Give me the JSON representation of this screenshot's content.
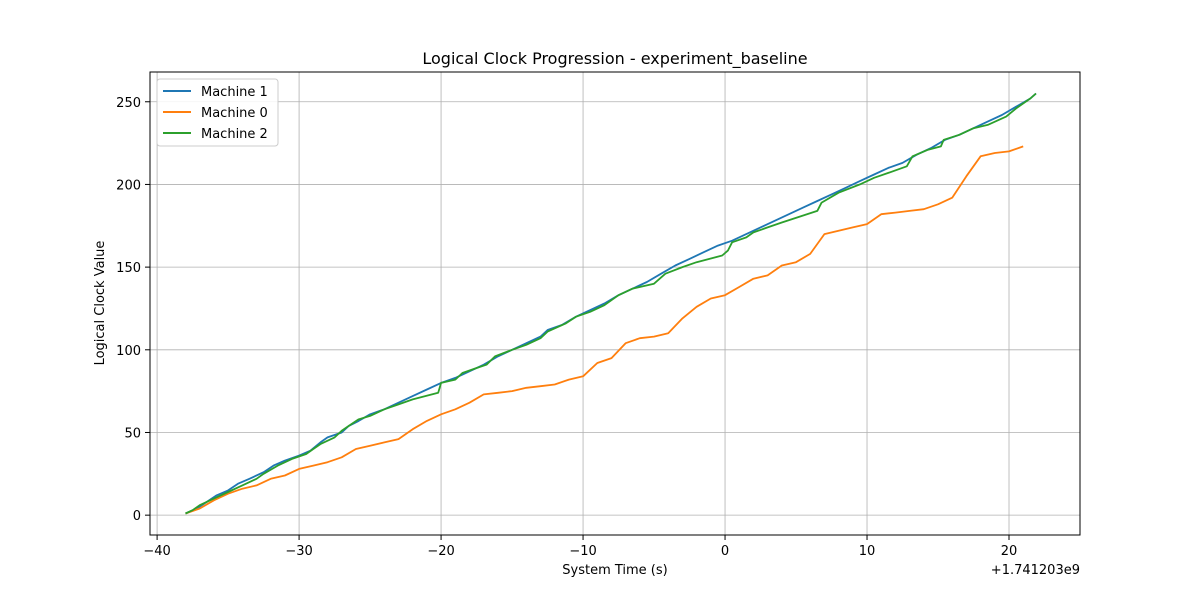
{
  "chart_data": {
    "type": "line",
    "title": "Logical Clock Progression - experiment_baseline",
    "xlabel": "System Time (s)",
    "ylabel": "Logical Clock Value",
    "x_offset_label": "+1.741203e9",
    "xlim": [
      -40.5,
      25
    ],
    "ylim": [
      -12,
      268
    ],
    "xticks": [
      -40,
      -30,
      -20,
      -10,
      0,
      10,
      20
    ],
    "xtick_labels": [
      "−40",
      "−30",
      "−20",
      "−10",
      "0",
      "10",
      "20"
    ],
    "yticks": [
      0,
      50,
      100,
      150,
      200,
      250
    ],
    "ytick_labels": [
      "0",
      "50",
      "100",
      "150",
      "200",
      "250"
    ],
    "grid": true,
    "legend": "top-left",
    "colors": {
      "Machine 1": "#1f77b4",
      "Machine 0": "#ff7f0e",
      "Machine 2": "#2ca02c"
    },
    "series": [
      {
        "name": "Machine 1",
        "color": "#1f77b4",
        "points": [
          [
            -38,
            1
          ],
          [
            -37.2,
            4
          ],
          [
            -36.5,
            8
          ],
          [
            -35.8,
            12
          ],
          [
            -35,
            15
          ],
          [
            -34.3,
            19
          ],
          [
            -33.5,
            22
          ],
          [
            -32.5,
            26
          ],
          [
            -31.8,
            30
          ],
          [
            -31,
            33
          ],
          [
            -30,
            36
          ],
          [
            -29.2,
            39
          ],
          [
            -28.5,
            44
          ],
          [
            -28,
            47
          ],
          [
            -27,
            50
          ],
          [
            -26.5,
            54
          ],
          [
            -25.8,
            57
          ],
          [
            -25,
            61
          ],
          [
            -24,
            64
          ],
          [
            -23,
            68
          ],
          [
            -22,
            72
          ],
          [
            -21,
            76
          ],
          [
            -20,
            80
          ],
          [
            -19,
            83
          ],
          [
            -18,
            87
          ],
          [
            -17,
            91
          ],
          [
            -16,
            96
          ],
          [
            -15,
            100
          ],
          [
            -14,
            104
          ],
          [
            -13,
            108
          ],
          [
            -12.5,
            112
          ],
          [
            -11.5,
            115
          ],
          [
            -10.5,
            120
          ],
          [
            -9.5,
            124
          ],
          [
            -8.5,
            128
          ],
          [
            -7.5,
            133
          ],
          [
            -6.5,
            137
          ],
          [
            -5.5,
            141
          ],
          [
            -4.5,
            146
          ],
          [
            -3.5,
            151
          ],
          [
            -2.5,
            155
          ],
          [
            -1.5,
            159
          ],
          [
            -0.5,
            163
          ],
          [
            0.5,
            166
          ],
          [
            1.5,
            170
          ],
          [
            2.5,
            174
          ],
          [
            3.5,
            178
          ],
          [
            4.5,
            182
          ],
          [
            5.5,
            186
          ],
          [
            6.5,
            190
          ],
          [
            7.5,
            194
          ],
          [
            8.5,
            198
          ],
          [
            9.5,
            202
          ],
          [
            10.5,
            206
          ],
          [
            11.5,
            210
          ],
          [
            12.5,
            213
          ],
          [
            13.5,
            218
          ],
          [
            14.5,
            222
          ],
          [
            15.5,
            227
          ],
          [
            16.5,
            230
          ],
          [
            17.5,
            234
          ],
          [
            18.5,
            238
          ],
          [
            19.5,
            242
          ],
          [
            20.5,
            247
          ],
          [
            21.5,
            252
          ],
          [
            21.9,
            255
          ]
        ]
      },
      {
        "name": "Machine 0",
        "color": "#ff7f0e",
        "points": [
          [
            -38,
            1
          ],
          [
            -37,
            4
          ],
          [
            -36,
            9
          ],
          [
            -35,
            13
          ],
          [
            -34,
            16
          ],
          [
            -33,
            18
          ],
          [
            -32,
            22
          ],
          [
            -31,
            24
          ],
          [
            -30,
            28
          ],
          [
            -29,
            30
          ],
          [
            -28,
            32
          ],
          [
            -27,
            35
          ],
          [
            -26,
            40
          ],
          [
            -25,
            42
          ],
          [
            -24,
            44
          ],
          [
            -23,
            46
          ],
          [
            -22,
            52
          ],
          [
            -21,
            57
          ],
          [
            -20,
            61
          ],
          [
            -19,
            64
          ],
          [
            -18,
            68
          ],
          [
            -17,
            73
          ],
          [
            -16,
            74
          ],
          [
            -15,
            75
          ],
          [
            -14,
            77
          ],
          [
            -13,
            78
          ],
          [
            -12,
            79
          ],
          [
            -11,
            82
          ],
          [
            -10,
            84
          ],
          [
            -9,
            92
          ],
          [
            -8,
            95
          ],
          [
            -7,
            104
          ],
          [
            -6,
            107
          ],
          [
            -5,
            108
          ],
          [
            -4,
            110
          ],
          [
            -3,
            119
          ],
          [
            -2,
            126
          ],
          [
            -1,
            131
          ],
          [
            0,
            133
          ],
          [
            1,
            138
          ],
          [
            2,
            143
          ],
          [
            3,
            145
          ],
          [
            4,
            151
          ],
          [
            5,
            153
          ],
          [
            6,
            158
          ],
          [
            7,
            170
          ],
          [
            8,
            172
          ],
          [
            9,
            174
          ],
          [
            10,
            176
          ],
          [
            11,
            182
          ],
          [
            12,
            183
          ],
          [
            13,
            184
          ],
          [
            14,
            185
          ],
          [
            15,
            188
          ],
          [
            16,
            192
          ],
          [
            17,
            205
          ],
          [
            18,
            217
          ],
          [
            19,
            219
          ],
          [
            20,
            220
          ],
          [
            21,
            223
          ]
        ]
      },
      {
        "name": "Machine 2",
        "color": "#2ca02c",
        "points": [
          [
            -38,
            1
          ],
          [
            -37.5,
            3
          ],
          [
            -37,
            6
          ],
          [
            -36,
            10
          ],
          [
            -35,
            14
          ],
          [
            -34,
            18
          ],
          [
            -33,
            22
          ],
          [
            -32.5,
            25
          ],
          [
            -31.5,
            30
          ],
          [
            -30.5,
            34
          ],
          [
            -29.5,
            37
          ],
          [
            -29,
            40
          ],
          [
            -28.5,
            43
          ],
          [
            -27.5,
            47
          ],
          [
            -27,
            51
          ],
          [
            -26.5,
            54
          ],
          [
            -25.8,
            58
          ],
          [
            -25,
            60
          ],
          [
            -24,
            64
          ],
          [
            -23,
            67
          ],
          [
            -22,
            70
          ],
          [
            -20.2,
            74
          ],
          [
            -20,
            80
          ],
          [
            -19,
            82
          ],
          [
            -18.5,
            86
          ],
          [
            -17.5,
            89
          ],
          [
            -16.8,
            91
          ],
          [
            -16.2,
            96
          ],
          [
            -15,
            100
          ],
          [
            -14,
            103
          ],
          [
            -13,
            107
          ],
          [
            -12.5,
            111
          ],
          [
            -11.2,
            116
          ],
          [
            -10.5,
            120
          ],
          [
            -9.5,
            123
          ],
          [
            -8.5,
            127
          ],
          [
            -7.5,
            133
          ],
          [
            -6.5,
            137
          ],
          [
            -5,
            140
          ],
          [
            -4.2,
            146
          ],
          [
            -3,
            150
          ],
          [
            -2,
            153
          ],
          [
            -0.2,
            157
          ],
          [
            0.2,
            160
          ],
          [
            0.5,
            165
          ],
          [
            1.5,
            168
          ],
          [
            2,
            171
          ],
          [
            3,
            174
          ],
          [
            4,
            177
          ],
          [
            6.5,
            184
          ],
          [
            6.8,
            189
          ],
          [
            8,
            195
          ],
          [
            9.5,
            200
          ],
          [
            10.5,
            204
          ],
          [
            11.5,
            207
          ],
          [
            12.8,
            211
          ],
          [
            13.2,
            217
          ],
          [
            14.3,
            221
          ],
          [
            15.2,
            223
          ],
          [
            15.4,
            227
          ],
          [
            16.5,
            230
          ],
          [
            17.5,
            234
          ],
          [
            18.5,
            236
          ],
          [
            19.8,
            241
          ],
          [
            20.5,
            246
          ],
          [
            21.5,
            252
          ],
          [
            21.9,
            255
          ]
        ]
      }
    ]
  }
}
